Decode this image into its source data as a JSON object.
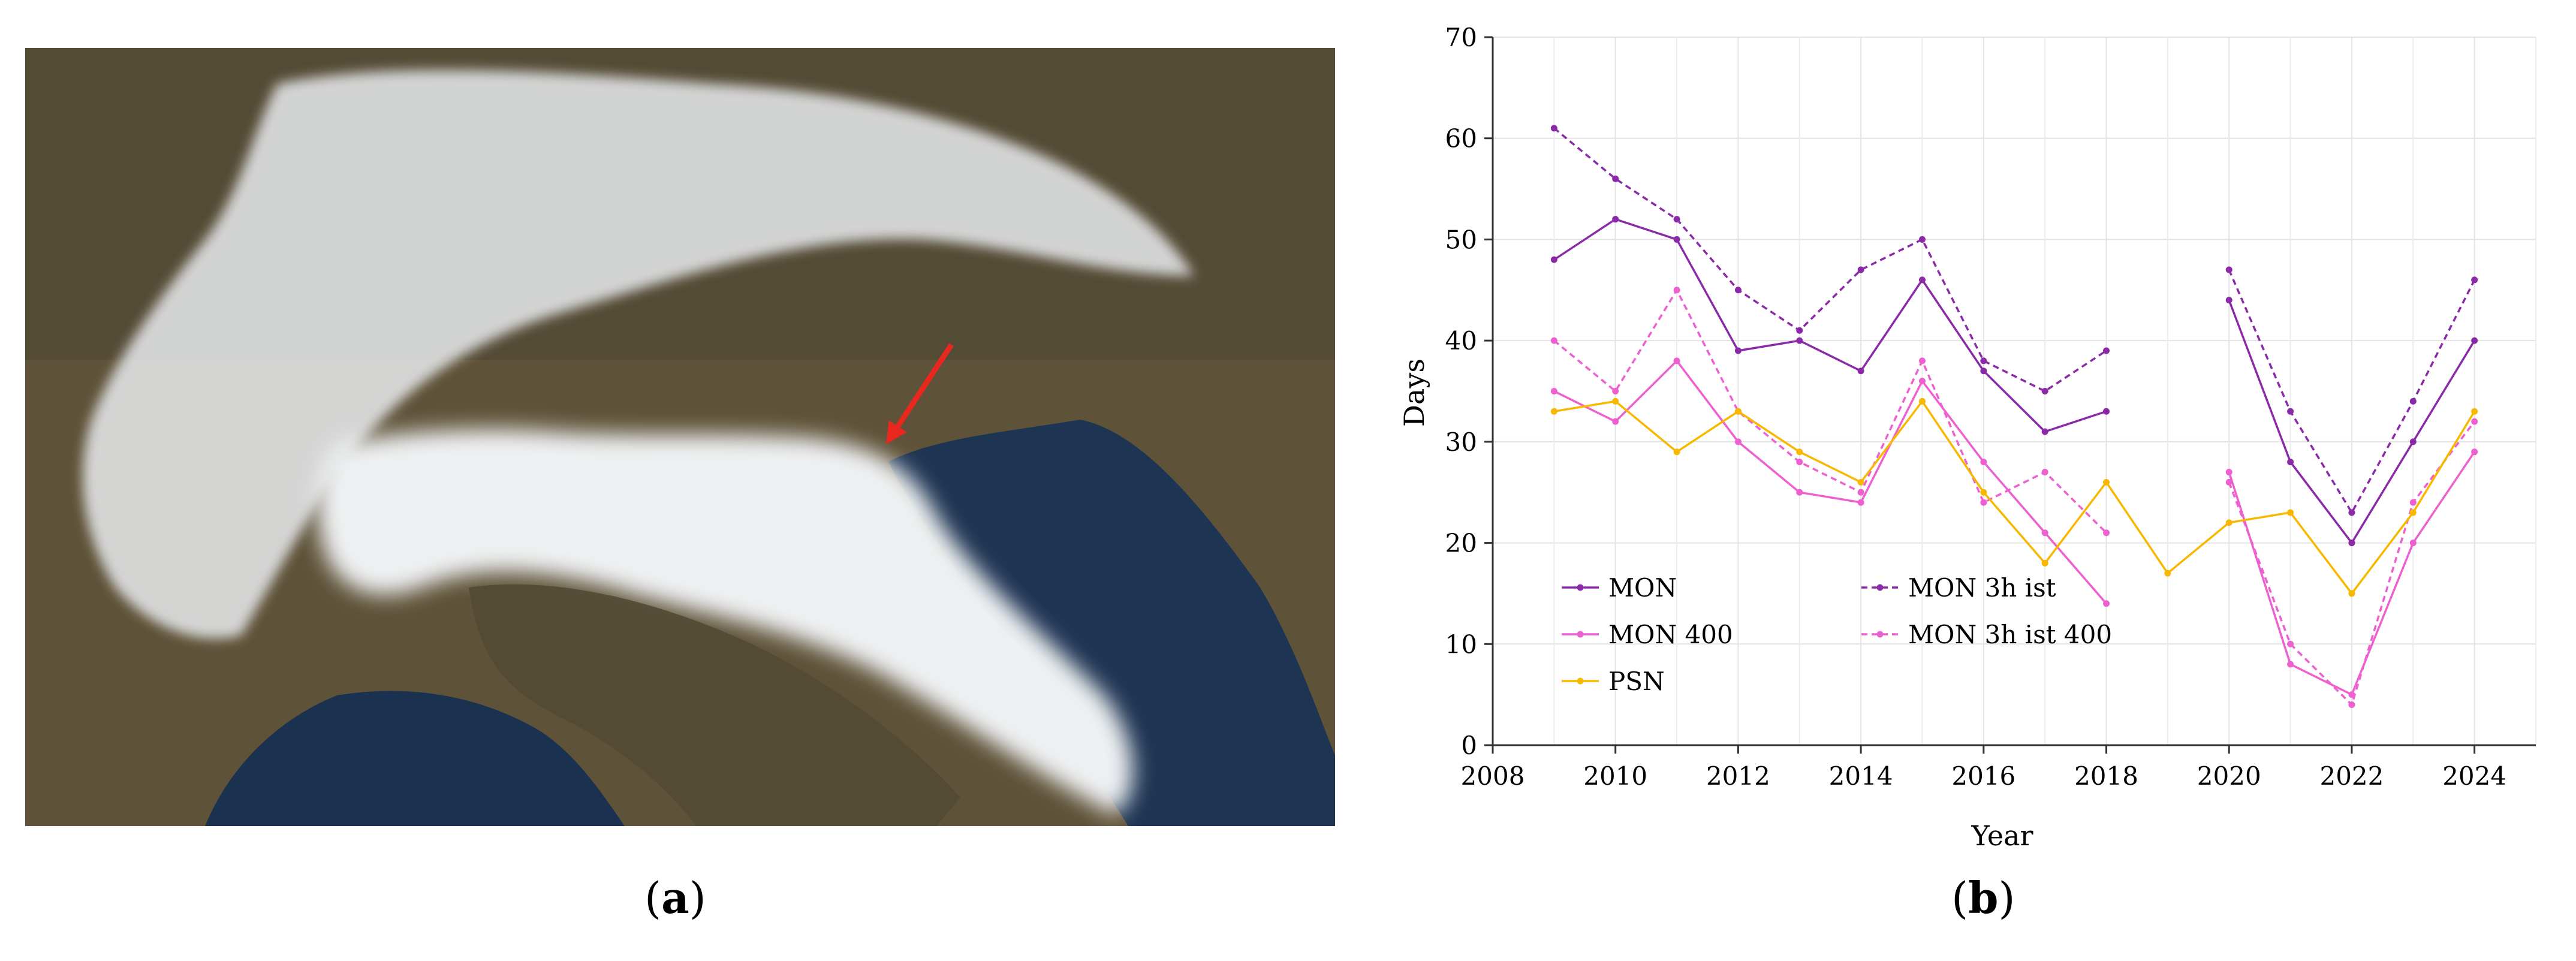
{
  "figure": {
    "caption_a": {
      "open": "(",
      "letter": "a",
      "close": ")"
    },
    "caption_b": {
      "open": "(",
      "letter": "b",
      "close": ")"
    }
  },
  "colors": {
    "mon": "#8a2aa8",
    "mon3h": "#8a2aa8",
    "mon400": "#ee5fd0",
    "mon3h400": "#ee5fd0",
    "psn": "#f8b800",
    "arrow": "#e8281e",
    "fog": "#eceef0",
    "snow": "#f2f3f5",
    "land": "#6b5a3c",
    "sea": "#1e3550"
  },
  "chart_data": {
    "type": "line",
    "title": "",
    "xlabel": "Year",
    "ylabel": "Days",
    "xlim": [
      2008,
      2025
    ],
    "ylim": [
      0,
      70
    ],
    "xticks": [
      2008,
      2010,
      2012,
      2014,
      2016,
      2018,
      2020,
      2022,
      2024
    ],
    "yticks": [
      0,
      10,
      20,
      30,
      40,
      50,
      60,
      70
    ],
    "grid": true,
    "legend_position": "bottom-left",
    "x": [
      2009,
      2010,
      2011,
      2012,
      2013,
      2014,
      2015,
      2016,
      2017,
      2018,
      2019,
      2020,
      2021,
      2022,
      2023,
      2024
    ],
    "series": [
      {
        "name": "MON",
        "color_key": "mon",
        "dashed": false,
        "values": [
          48,
          52,
          50,
          39,
          40,
          37,
          46,
          37,
          31,
          33,
          null,
          44,
          28,
          20,
          30,
          40
        ]
      },
      {
        "name": "MON 3h ist",
        "color_key": "mon3h",
        "dashed": true,
        "values": [
          61,
          56,
          52,
          45,
          41,
          47,
          50,
          38,
          35,
          39,
          null,
          47,
          33,
          23,
          34,
          46
        ]
      },
      {
        "name": "MON 400",
        "color_key": "mon400",
        "dashed": false,
        "values": [
          35,
          32,
          38,
          30,
          25,
          24,
          36,
          28,
          21,
          14,
          null,
          27,
          8,
          5,
          20,
          29
        ]
      },
      {
        "name": "MON 3h ist 400",
        "color_key": "mon3h400",
        "dashed": true,
        "values": [
          40,
          35,
          45,
          33,
          28,
          25,
          38,
          24,
          27,
          21,
          null,
          26,
          10,
          4,
          24,
          32
        ]
      },
      {
        "name": "PSN",
        "color_key": "psn",
        "dashed": false,
        "values": [
          33,
          34,
          29,
          33,
          29,
          26,
          34,
          25,
          18,
          26,
          17,
          22,
          23,
          15,
          23,
          33
        ]
      }
    ]
  }
}
